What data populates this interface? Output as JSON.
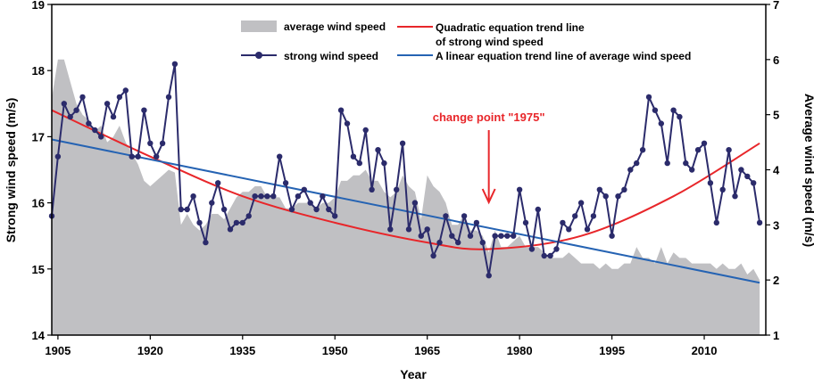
{
  "chart_data": {
    "type": "line",
    "xlabel": "Year",
    "ylabel_left": "Strong wind speed (m/s)",
    "ylabel_right": "Average wind speed (m/s)",
    "xlim": [
      1904,
      2020
    ],
    "ylim_left": [
      14,
      19
    ],
    "ylim_right": [
      1,
      7
    ],
    "x_ticks": [
      1905,
      1920,
      1935,
      1950,
      1965,
      1980,
      1995,
      2010
    ],
    "y_left_ticks": [
      14,
      15,
      16,
      17,
      18,
      19
    ],
    "y_right_ticks": [
      1,
      2,
      3,
      4,
      5,
      6,
      7
    ],
    "legend": {
      "position": "top",
      "average": "average wind speed",
      "strong": "strong wind speed",
      "quad_line1": "Quadratic equation trend line",
      "quad_line2": "of strong wind speed",
      "linear": "A linear equation trend line of average wind speed"
    },
    "annotation": {
      "text": "change point \"1975\"",
      "x": 1975,
      "color": "#e8262a"
    },
    "colors": {
      "area": "#c0c0c3",
      "strong": "#2b2b6b",
      "quadratic": "#e8262a",
      "linear": "#2563b3"
    },
    "series_strong": {
      "name": "strong wind speed",
      "axis": "left",
      "x": [
        1904,
        1905,
        1906,
        1907,
        1908,
        1909,
        1910,
        1911,
        1912,
        1913,
        1914,
        1915,
        1916,
        1917,
        1918,
        1919,
        1920,
        1921,
        1922,
        1923,
        1924,
        1925,
        1926,
        1927,
        1928,
        1929,
        1930,
        1931,
        1932,
        1933,
        1934,
        1935,
        1936,
        1937,
        1938,
        1939,
        1940,
        1941,
        1942,
        1943,
        1944,
        1945,
        1946,
        1947,
        1948,
        1949,
        1950,
        1951,
        1952,
        1953,
        1954,
        1955,
        1956,
        1957,
        1958,
        1959,
        1960,
        1961,
        1962,
        1963,
        1964,
        1965,
        1966,
        1967,
        1968,
        1969,
        1970,
        1971,
        1972,
        1973,
        1974,
        1975,
        1976,
        1977,
        1978,
        1979,
        1980,
        1981,
        1982,
        1983,
        1984,
        1985,
        1986,
        1987,
        1988,
        1989,
        1990,
        1991,
        1992,
        1993,
        1994,
        1995,
        1996,
        1997,
        1998,
        1999,
        2000,
        2001,
        2002,
        2003,
        2004,
        2005,
        2006,
        2007,
        2008,
        2009,
        2010,
        2011,
        2012,
        2013,
        2014,
        2015,
        2016,
        2017,
        2018,
        2019
      ],
      "values": [
        15.8,
        16.7,
        17.5,
        17.3,
        17.4,
        17.6,
        17.2,
        17.1,
        17.0,
        17.5,
        17.3,
        17.6,
        17.7,
        16.7,
        16.7,
        17.4,
        16.9,
        16.7,
        16.9,
        17.6,
        18.1,
        15.9,
        15.9,
        16.1,
        15.7,
        15.4,
        16.0,
        16.3,
        15.9,
        15.6,
        15.7,
        15.7,
        15.8,
        16.1,
        16.1,
        16.1,
        16.1,
        16.7,
        16.3,
        15.9,
        16.1,
        16.2,
        16.0,
        15.9,
        16.1,
        15.9,
        15.8,
        17.4,
        17.2,
        16.7,
        16.6,
        17.1,
        16.2,
        16.8,
        16.6,
        15.6,
        16.2,
        16.9,
        15.6,
        16.0,
        15.5,
        15.6,
        15.2,
        15.4,
        15.8,
        15.5,
        15.4,
        15.8,
        15.5,
        15.7,
        15.4,
        14.9,
        15.5,
        15.5,
        15.5,
        15.5,
        16.2,
        15.7,
        15.3,
        15.9,
        15.2,
        15.2,
        15.3,
        15.7,
        15.6,
        15.8,
        16.0,
        15.6,
        15.8,
        16.2,
        16.1,
        15.5,
        16.1,
        16.2,
        16.5,
        16.6,
        16.8,
        17.6,
        17.4,
        17.2,
        16.6,
        17.4,
        17.3,
        16.6,
        16.5,
        16.8,
        16.9,
        16.3,
        15.7,
        16.2,
        16.8,
        16.1,
        16.5,
        16.4,
        16.3,
        15.7
      ]
    },
    "series_average": {
      "name": "average wind speed",
      "axis": "right",
      "x": [
        1904,
        1905,
        1906,
        1907,
        1908,
        1909,
        1910,
        1911,
        1912,
        1913,
        1914,
        1915,
        1916,
        1917,
        1918,
        1919,
        1920,
        1921,
        1922,
        1923,
        1924,
        1925,
        1926,
        1927,
        1928,
        1929,
        1930,
        1931,
        1932,
        1933,
        1934,
        1935,
        1936,
        1937,
        1938,
        1939,
        1940,
        1941,
        1942,
        1943,
        1944,
        1945,
        1946,
        1947,
        1948,
        1949,
        1950,
        1951,
        1952,
        1953,
        1954,
        1955,
        1956,
        1957,
        1958,
        1959,
        1960,
        1961,
        1962,
        1963,
        1964,
        1965,
        1966,
        1967,
        1968,
        1969,
        1970,
        1971,
        1972,
        1973,
        1974,
        1975,
        1976,
        1977,
        1978,
        1979,
        1980,
        1981,
        1982,
        1983,
        1984,
        1985,
        1986,
        1987,
        1988,
        1989,
        1990,
        1991,
        1992,
        1993,
        1994,
        1995,
        1996,
        1997,
        1998,
        1999,
        2000,
        2001,
        2002,
        2003,
        2004,
        2005,
        2006,
        2007,
        2008,
        2009,
        2010,
        2011,
        2012,
        2013,
        2014,
        2015,
        2016,
        2017,
        2018,
        2019
      ],
      "values": [
        5.3,
        6.0,
        6.0,
        5.6,
        5.2,
        5.0,
        4.9,
        4.7,
        4.8,
        4.5,
        4.6,
        4.8,
        4.5,
        4.3,
        4.1,
        3.8,
        3.7,
        3.8,
        3.9,
        4.0,
        3.95,
        3.0,
        3.2,
        3.0,
        2.9,
        3.0,
        3.2,
        3.2,
        3.1,
        3.3,
        3.5,
        3.6,
        3.6,
        3.7,
        3.7,
        3.5,
        3.5,
        3.5,
        3.3,
        3.3,
        3.4,
        3.4,
        3.4,
        3.3,
        3.4,
        3.4,
        3.5,
        3.8,
        3.8,
        3.9,
        3.9,
        4.0,
        3.8,
        3.8,
        3.6,
        3.5,
        3.6,
        3.9,
        3.7,
        3.6,
        3.1,
        3.9,
        3.7,
        3.6,
        3.4,
        3.0,
        3.0,
        3.2,
        2.9,
        2.9,
        2.8,
        2.5,
        2.9,
        2.6,
        2.6,
        2.7,
        2.8,
        2.6,
        2.6,
        2.6,
        2.5,
        2.4,
        2.4,
        2.4,
        2.5,
        2.4,
        2.3,
        2.3,
        2.3,
        2.2,
        2.3,
        2.2,
        2.2,
        2.3,
        2.3,
        2.6,
        2.4,
        2.4,
        2.3,
        2.6,
        2.3,
        2.5,
        2.4,
        2.4,
        2.3,
        2.3,
        2.3,
        2.3,
        2.2,
        2.3,
        2.2,
        2.2,
        2.3,
        2.1,
        2.2,
        2.0
      ]
    },
    "trend_quadratic": {
      "name": "Quadratic equation trend line of strong wind speed",
      "axis": "left",
      "x": [
        1904,
        1920,
        1935,
        1950,
        1965,
        1975,
        1990,
        2005,
        2019
      ],
      "values": [
        17.4,
        16.7,
        16.1,
        15.7,
        15.4,
        15.3,
        15.5,
        16.1,
        16.9
      ]
    },
    "trend_linear": {
      "name": "A linear equation trend line of average wind speed",
      "axis": "right",
      "x": [
        1904,
        2019
      ],
      "values": [
        4.55,
        1.95
      ]
    }
  }
}
